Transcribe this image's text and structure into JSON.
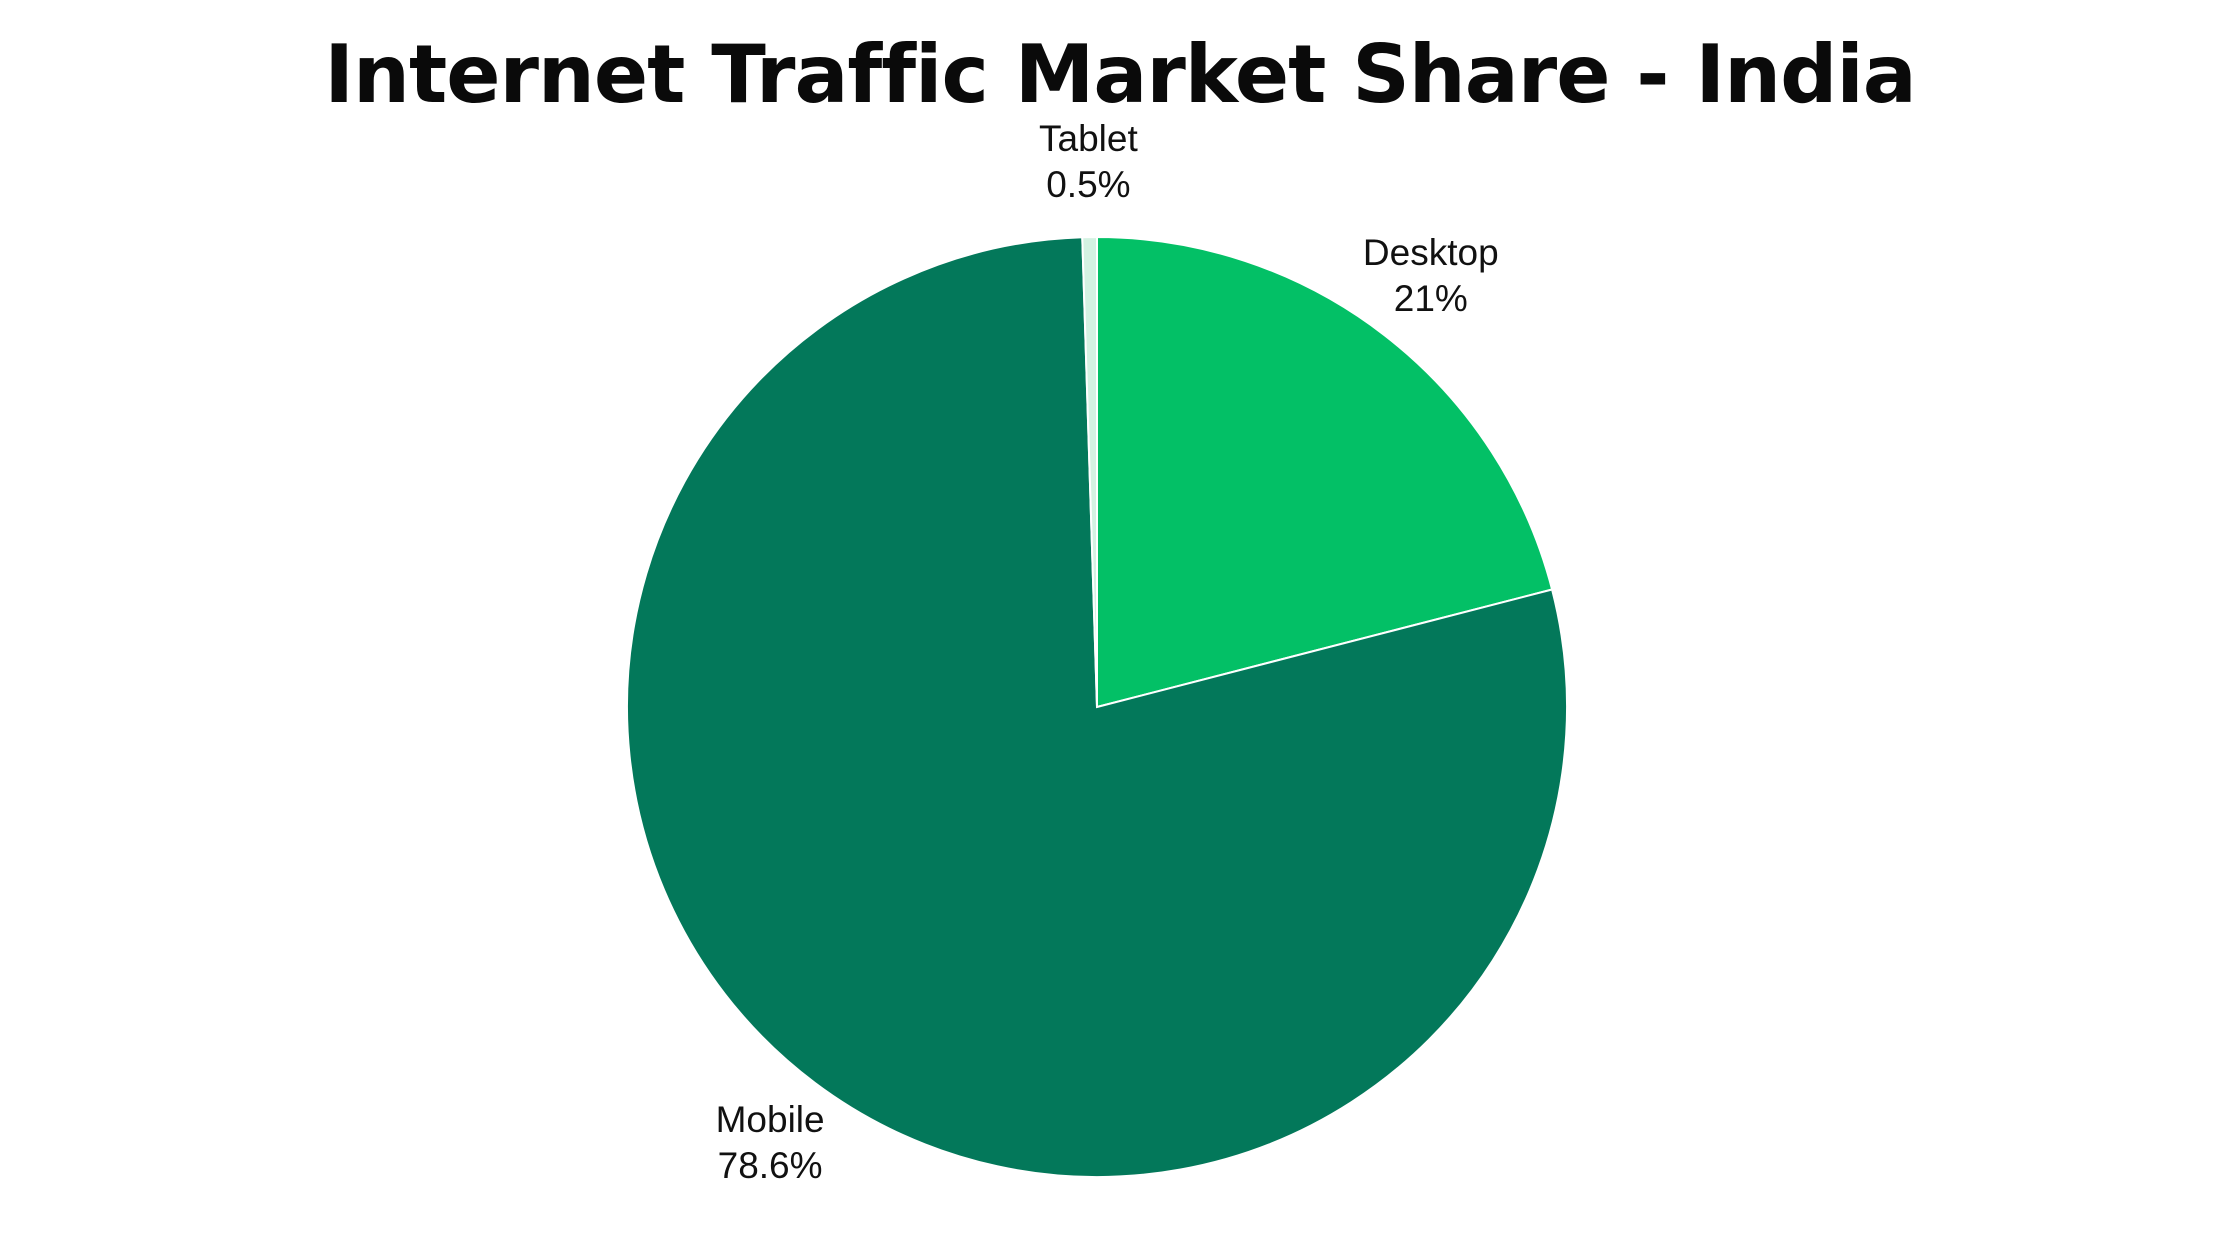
{
  "chart_data": {
    "type": "pie",
    "title": "Internet Traffic Market Share - India",
    "start_angle_deg": 0,
    "direction": "clockwise",
    "slices": [
      {
        "name": "Desktop",
        "value": 21,
        "label_value": "21%",
        "color": "#03C066"
      },
      {
        "name": "Mobile",
        "value": 78.6,
        "label_value": "78.6%",
        "color": "#03785A"
      },
      {
        "name": "Tablet",
        "value": 0.5,
        "label_value": "0.5%",
        "color": "#D4F2E2"
      }
    ],
    "legend": "none"
  }
}
